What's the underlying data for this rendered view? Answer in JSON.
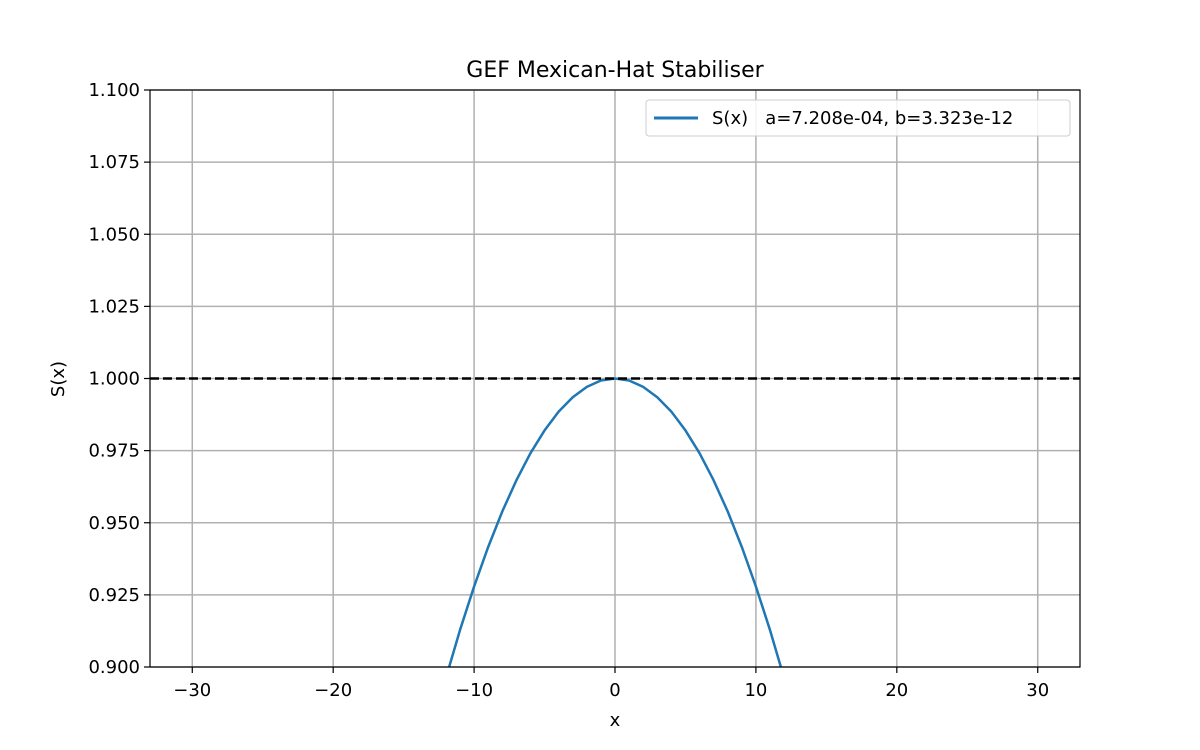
{
  "chart_data": {
    "type": "line",
    "title": "GEF Mexican-Hat Stabiliser",
    "xlabel": "x",
    "ylabel": "S(x)",
    "xlim": [
      -33,
      33
    ],
    "ylim": [
      0.9,
      1.1
    ],
    "x_ticks": [
      -30,
      -20,
      -10,
      0,
      10,
      20,
      30
    ],
    "x_tick_labels": [
      "−30",
      "−20",
      "−10",
      "0",
      "10",
      "20",
      "30"
    ],
    "y_ticks": [
      0.9,
      0.925,
      0.95,
      0.975,
      1.0,
      1.025,
      1.05,
      1.075,
      1.1
    ],
    "y_tick_labels": [
      "0.900",
      "0.925",
      "0.950",
      "0.975",
      "1.000",
      "1.025",
      "1.050",
      "1.075",
      "1.100"
    ],
    "grid": true,
    "legend_position": "top-right",
    "series": [
      {
        "name": "S(x)   a=7.208e-04, b=3.323e-12",
        "color": "#1f77b4",
        "x": [
          -12,
          -11,
          -10,
          -9,
          -8,
          -7,
          -6,
          -5,
          -4,
          -3,
          -2,
          -1,
          0,
          1,
          2,
          3,
          4,
          5,
          6,
          7,
          8,
          9,
          10,
          11,
          12
        ],
        "y": [
          0.8962,
          0.9128,
          0.9279,
          0.9416,
          0.9539,
          0.9647,
          0.9741,
          0.982,
          0.9885,
          0.9935,
          0.9971,
          0.9993,
          1.0,
          0.9993,
          0.9971,
          0.9935,
          0.9885,
          0.982,
          0.9741,
          0.9647,
          0.9539,
          0.9416,
          0.9279,
          0.9128,
          0.8962
        ]
      }
    ],
    "reference_lines": [
      {
        "orientation": "horizontal",
        "y": 1.0,
        "style": "dashed",
        "color": "#000000"
      }
    ]
  }
}
